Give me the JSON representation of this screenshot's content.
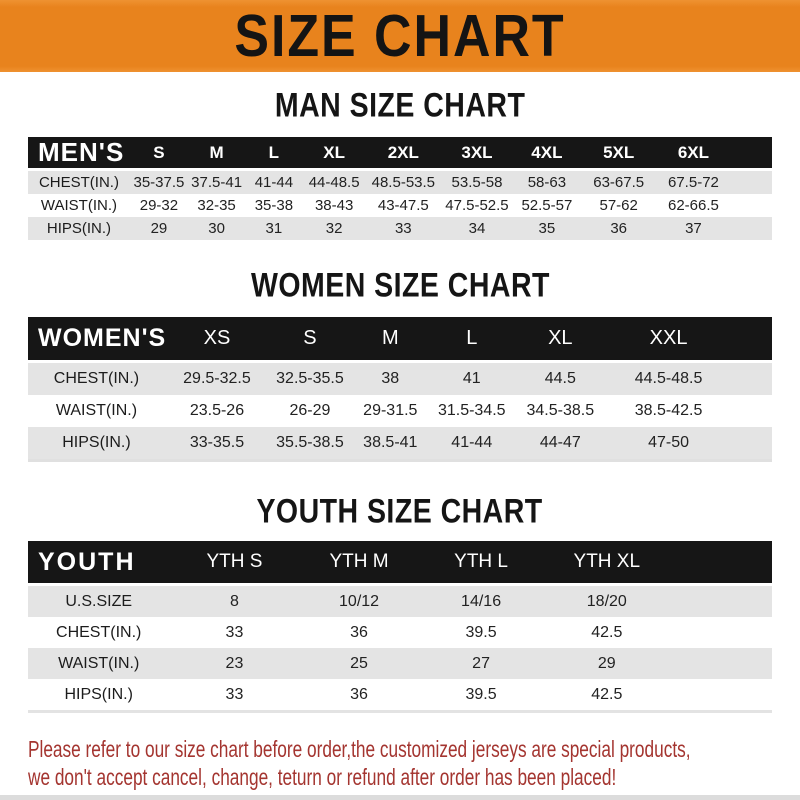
{
  "banner": {
    "title": "SIZE CHART"
  },
  "colors": {
    "banner_bg": "#E8831D",
    "header_bar_bg": "#161616",
    "row_alt_bg": "#E4E4E4",
    "footer_text": "#A43530"
  },
  "sections": [
    {
      "id": "man",
      "heading": "MAN SIZE CHART",
      "table": {
        "header_label": "MEN'S",
        "columns": [
          "S",
          "M",
          "L",
          "XL",
          "2XL",
          "3XL",
          "4XL",
          "5XL",
          "6XL"
        ],
        "rows": [
          {
            "label": "CHEST(IN.)",
            "values": [
              "35-37.5",
              "37.5-41",
              "41-44",
              "44-48.5",
              "48.5-53.5",
              "53.5-58",
              "58-63",
              "63-67.5",
              "67.5-72"
            ]
          },
          {
            "label": "WAIST(IN.)",
            "values": [
              "29-32",
              "32-35",
              "35-38",
              "38-43",
              "43-47.5",
              "47.5-52.5",
              "52.5-57",
              "57-62",
              "62-66.5"
            ]
          },
          {
            "label": "HIPS(IN.)",
            "values": [
              "29",
              "30",
              "31",
              "32",
              "33",
              "34",
              "35",
              "36",
              "37"
            ]
          }
        ]
      }
    },
    {
      "id": "women",
      "heading": "WOMEN SIZE CHART",
      "table": {
        "header_label": "WOMEN'S",
        "columns": [
          "XS",
          "S",
          "M",
          "L",
          "XL",
          "XXL"
        ],
        "rows": [
          {
            "label": "CHEST(IN.)",
            "values": [
              "29.5-32.5",
              "32.5-35.5",
              "38",
              "41",
              "44.5",
              "44.5-48.5"
            ]
          },
          {
            "label": "WAIST(IN.)",
            "values": [
              "23.5-26",
              "26-29",
              "29-31.5",
              "31.5-34.5",
              "34.5-38.5",
              "38.5-42.5"
            ]
          },
          {
            "label": "HIPS(IN.)",
            "values": [
              "33-35.5",
              "35.5-38.5",
              "38.5-41",
              "41-44",
              "44-47",
              "47-50"
            ]
          }
        ]
      }
    },
    {
      "id": "youth",
      "heading": "YOUTH SIZE CHART",
      "table": {
        "header_label": "YOUTH",
        "columns": [
          "YTH S",
          "YTH M",
          "YTH L",
          "YTH XL"
        ],
        "rows": [
          {
            "label": "U.S.SIZE",
            "values": [
              "8",
              "10/12",
              "14/16",
              "18/20"
            ]
          },
          {
            "label": "CHEST(IN.)",
            "values": [
              "33",
              "36",
              "39.5",
              "42.5"
            ]
          },
          {
            "label": "WAIST(IN.)",
            "values": [
              "23",
              "25",
              "27",
              "29"
            ]
          },
          {
            "label": "HIPS(IN.)",
            "values": [
              "33",
              "36",
              "39.5",
              "42.5"
            ]
          }
        ]
      }
    }
  ],
  "footer": {
    "line1": "Please refer to our size chart before order,the customized jerseys are special products,",
    "line2": "we don't accept cancel, change, teturn or refund after order has been placed!"
  }
}
